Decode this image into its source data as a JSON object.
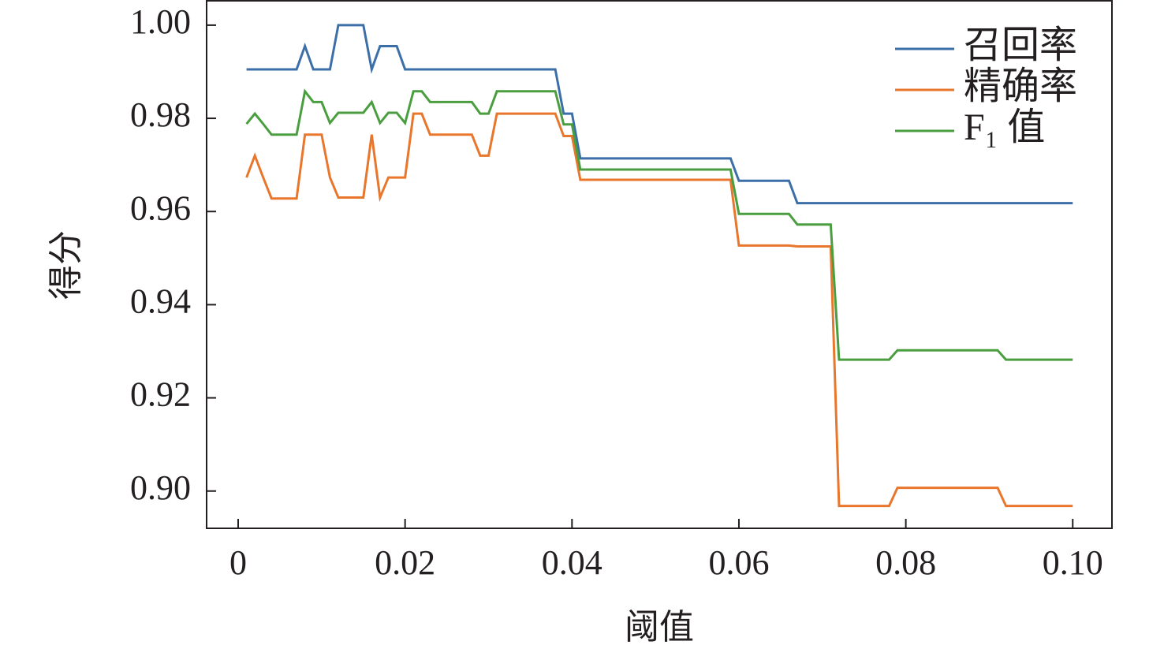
{
  "chart_data": {
    "type": "line",
    "x_label": "阈值",
    "y_label": "得分",
    "x": [
      0.001,
      0.002,
      0.003,
      0.004,
      0.007,
      0.008,
      0.009,
      0.01,
      0.011,
      0.012,
      0.015,
      0.016,
      0.017,
      0.018,
      0.019,
      0.02,
      0.021,
      0.022,
      0.023,
      0.028,
      0.029,
      0.03,
      0.031,
      0.038,
      0.039,
      0.04,
      0.041,
      0.059,
      0.06,
      0.066,
      0.067,
      0.071,
      0.072,
      0.078,
      0.079,
      0.091,
      0.092,
      0.1
    ],
    "series": [
      {
        "name": "召回率",
        "color": "#3c6fa8",
        "values": [
          0.9905,
          0.9905,
          0.9905,
          0.9905,
          0.9905,
          0.9955,
          0.9905,
          0.9905,
          0.9905,
          1.0,
          1.0,
          0.9905,
          0.9955,
          0.9955,
          0.9955,
          0.9905,
          0.9905,
          0.9905,
          0.9905,
          0.9905,
          0.9905,
          0.9905,
          0.9905,
          0.9905,
          0.981,
          0.981,
          0.9714,
          0.9714,
          0.9666,
          0.9666,
          0.9618,
          0.9618,
          0.9618,
          0.9618,
          0.9618,
          0.9618,
          0.9618,
          0.9618
        ]
      },
      {
        "name": "精确率",
        "color": "#e8762c",
        "values": [
          0.9673,
          0.972,
          0.9673,
          0.9628,
          0.9628,
          0.9765,
          0.9765,
          0.9765,
          0.9673,
          0.963,
          0.963,
          0.9765,
          0.963,
          0.9673,
          0.9673,
          0.9673,
          0.981,
          0.981,
          0.9765,
          0.9765,
          0.972,
          0.972,
          0.981,
          0.981,
          0.9762,
          0.9762,
          0.9668,
          0.9668,
          0.9527,
          0.9527,
          0.9525,
          0.9525,
          0.8968,
          0.8968,
          0.9007,
          0.9007,
          0.8968,
          0.8968
        ]
      },
      {
        "name": "F₁ 值",
        "color": "#4a9e3f",
        "values": [
          0.9788,
          0.981,
          0.9788,
          0.9765,
          0.9765,
          0.9858,
          0.9835,
          0.9835,
          0.979,
          0.9812,
          0.9812,
          0.9835,
          0.979,
          0.9812,
          0.9812,
          0.979,
          0.9858,
          0.9858,
          0.9835,
          0.9835,
          0.981,
          0.981,
          0.9858,
          0.9858,
          0.9787,
          0.9787,
          0.969,
          0.969,
          0.9595,
          0.9595,
          0.9572,
          0.9572,
          0.9282,
          0.9282,
          0.9302,
          0.9302,
          0.9282,
          0.9282
        ]
      }
    ],
    "xlim": [
      -0.00378,
      0.1047
    ],
    "ylim": [
      0.892,
      1.0054
    ],
    "xticks": [
      0,
      0.02,
      0.04,
      0.06,
      0.08,
      {
        "value": 0.1,
        "label": "0.10"
      }
    ],
    "yticks": [
      {
        "value": 0.9,
        "label": "0.90"
      },
      0.92,
      0.94,
      0.96,
      0.98,
      {
        "value": 1,
        "label": "1.00"
      }
    ],
    "legend": "upper right"
  }
}
